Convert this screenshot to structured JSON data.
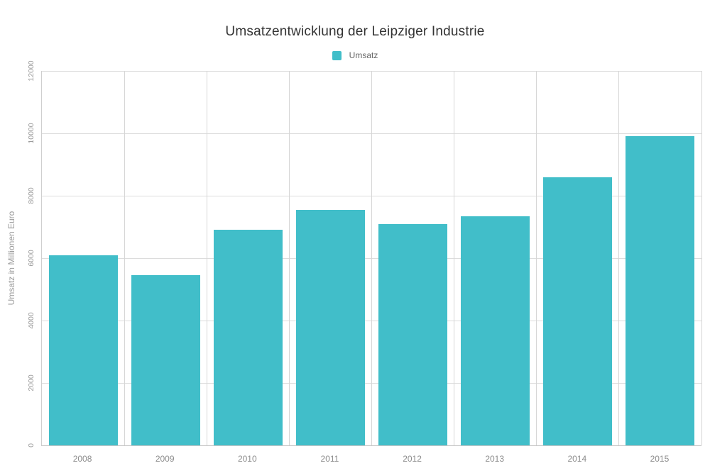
{
  "title": "Umsatzentwicklung der Leipziger Industrie",
  "legend": {
    "items": [
      {
        "label": "Umsatz",
        "color": "#41bec9"
      }
    ]
  },
  "chart_data": {
    "type": "bar",
    "title": "Umsatzentwicklung der Leipziger Industrie",
    "categories": [
      "2008",
      "2009",
      "2010",
      "2011",
      "2012",
      "2013",
      "2014",
      "2015"
    ],
    "series": [
      {
        "name": "Umsatz",
        "color": "#41bec9",
        "values": [
          6100,
          5450,
          6900,
          7550,
          7100,
          7350,
          8600,
          9900
        ]
      }
    ],
    "xlabel": "",
    "ylabel": "Umsatz in Millionen Euro",
    "ylim": [
      0,
      12000
    ],
    "ytick_step": 2000,
    "yticks": [
      "0",
      "2000",
      "4000",
      "6000",
      "8000",
      "10000",
      "12000"
    ],
    "grid": true,
    "legend_position": "top-center"
  },
  "colors": {
    "bar": "#41bec9",
    "grid_h": "#dcdcdc",
    "grid_v": "#d6d6d6",
    "axis": "#c6c6c6",
    "tick_label": "#9b9b9b",
    "x_label": "#8c8c8c",
    "title": "#333333",
    "legend_label": "#666666",
    "background": "#ffffff"
  }
}
